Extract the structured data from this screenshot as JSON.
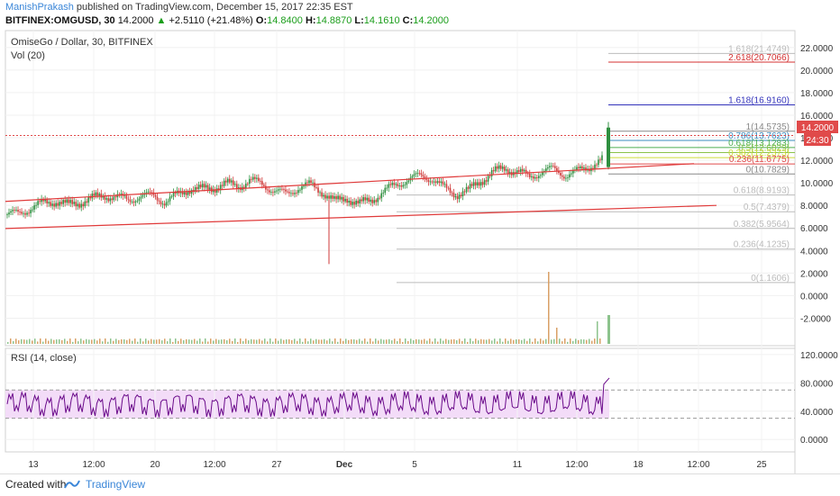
{
  "header": {
    "author": "ManishPrakash",
    "published_text": "published on TradingView.com, December 15, 2017 22:35 EST",
    "symbol_line": "BITFINEX:OMGUSD, 30",
    "last": "14.2000",
    "change": "+2.5110 (+21.48%)",
    "o_label": "O:",
    "o_value": "14.8400",
    "h_label": "H:",
    "h_value": "14.8870",
    "l_label": "L:",
    "l_value": "14.1610",
    "c_label": "C:",
    "c_value": "14.2000"
  },
  "legend": {
    "title": "OmiseGo / Dollar, 30, BITFINEX",
    "vol": "Vol (20)",
    "rsi": "RSI (14, close)"
  },
  "price_badge": {
    "value": "14.2000",
    "countdown": "24:30",
    "color": "#e04a4a"
  },
  "colors": {
    "candle_up": "#2f8f3f",
    "candle_down": "#cf3a3a",
    "channel": "#e03a3a",
    "rsi": "#6a0a8a",
    "rsi_band": "#f3dcf8"
  },
  "chart_data": {
    "type": "candlestick",
    "price_axis": {
      "ticks": [
        "22.0000",
        "20.0000",
        "18.0000",
        "16.0000",
        "14.0000",
        "12.0000",
        "10.0000",
        "8.0000",
        "6.0000",
        "4.0000",
        "2.0000",
        "0.0000",
        "-2.0000"
      ],
      "range": [
        -3.8,
        22.7
      ]
    },
    "rsi_axis": {
      "ticks": [
        "120.0000",
        "80.0000",
        "40.0000",
        "0.0000"
      ],
      "range": [
        -15,
        125
      ],
      "band": [
        30,
        70
      ]
    },
    "time_axis": {
      "labels": [
        "13",
        "12:00",
        "20",
        "12:00",
        "27",
        "Dec",
        "5",
        "11",
        "12:00",
        "18",
        "12:00",
        "25"
      ]
    },
    "price_path": [
      [
        0,
        7.2
      ],
      [
        10,
        7.3
      ],
      [
        20,
        7.8
      ],
      [
        30,
        8.2
      ],
      [
        40,
        8.4
      ],
      [
        50,
        8.0
      ],
      [
        60,
        8.3
      ],
      [
        70,
        8.6
      ],
      [
        80,
        8.9
      ],
      [
        90,
        8.7
      ],
      [
        100,
        8.5
      ],
      [
        110,
        8.8
      ],
      [
        120,
        8.9
      ],
      [
        130,
        8.3
      ],
      [
        140,
        8.9
      ],
      [
        150,
        9.5
      ],
      [
        160,
        9.4
      ],
      [
        170,
        9.6
      ],
      [
        180,
        9.9
      ],
      [
        190,
        9.7
      ],
      [
        200,
        10.2
      ],
      [
        210,
        9.9
      ],
      [
        220,
        9.3
      ],
      [
        230,
        9.0
      ],
      [
        240,
        9.6
      ],
      [
        250,
        9.8
      ],
      [
        260,
        9.2
      ],
      [
        270,
        8.3
      ],
      [
        280,
        8.7
      ],
      [
        290,
        8.1
      ],
      [
        300,
        8.5
      ],
      [
        310,
        9.2
      ],
      [
        320,
        9.8
      ],
      [
        330,
        10.3
      ],
      [
        340,
        10.6
      ],
      [
        350,
        10.4
      ],
      [
        360,
        9.5
      ],
      [
        370,
        9.0
      ],
      [
        380,
        9.3
      ],
      [
        390,
        10.2
      ],
      [
        400,
        10.9
      ],
      [
        410,
        11.3
      ],
      [
        420,
        11.0
      ],
      [
        430,
        10.5
      ],
      [
        440,
        11.0
      ],
      [
        450,
        11.2
      ],
      [
        460,
        10.7
      ],
      [
        470,
        11.0
      ],
      [
        480,
        11.5
      ],
      [
        490,
        12.0
      ]
    ],
    "fib_levels": [
      {
        "ratio": "1.618",
        "value": "21.4749",
        "color": "#bbbbbb"
      },
      {
        "ratio": "2.618",
        "value": "20.7066",
        "color": "#d43030"
      },
      {
        "ratio": "1.618",
        "value": "16.9160",
        "color": "#3333bb"
      },
      {
        "ratio": "1",
        "value": "14.5735",
        "color": "#888888"
      },
      {
        "ratio": "0.786",
        "value": "13.7623",
        "color": "#3a8cbf"
      },
      {
        "ratio": "0.618",
        "value": "13.1283",
        "color": "#4caf50"
      },
      {
        "ratio": "0.5",
        "value": "12.6829",
        "color": "#8bc34a"
      },
      {
        "ratio": "0.382",
        "value": "12.2373",
        "color": "#cddc39"
      },
      {
        "ratio": "0.236",
        "value": "11.6775",
        "color": "#e04a4a"
      },
      {
        "ratio": "0",
        "value": "10.7829",
        "color": "#888888"
      },
      {
        "ratio": "0.618",
        "value": "8.9193",
        "color": "#bbbbbb"
      },
      {
        "ratio": "0.5",
        "value": "7.4379",
        "color": "#bbbbbb"
      },
      {
        "ratio": "0.382",
        "value": "5.9564",
        "color": "#bbbbbb"
      },
      {
        "ratio": "0.236",
        "value": "4.1235",
        "color": "#bbbbbb"
      },
      {
        "ratio": "0",
        "value": "1.1606",
        "color": "#bbbbbb"
      }
    ]
  },
  "footer": {
    "created": "Created with",
    "brand": "TradingView"
  }
}
